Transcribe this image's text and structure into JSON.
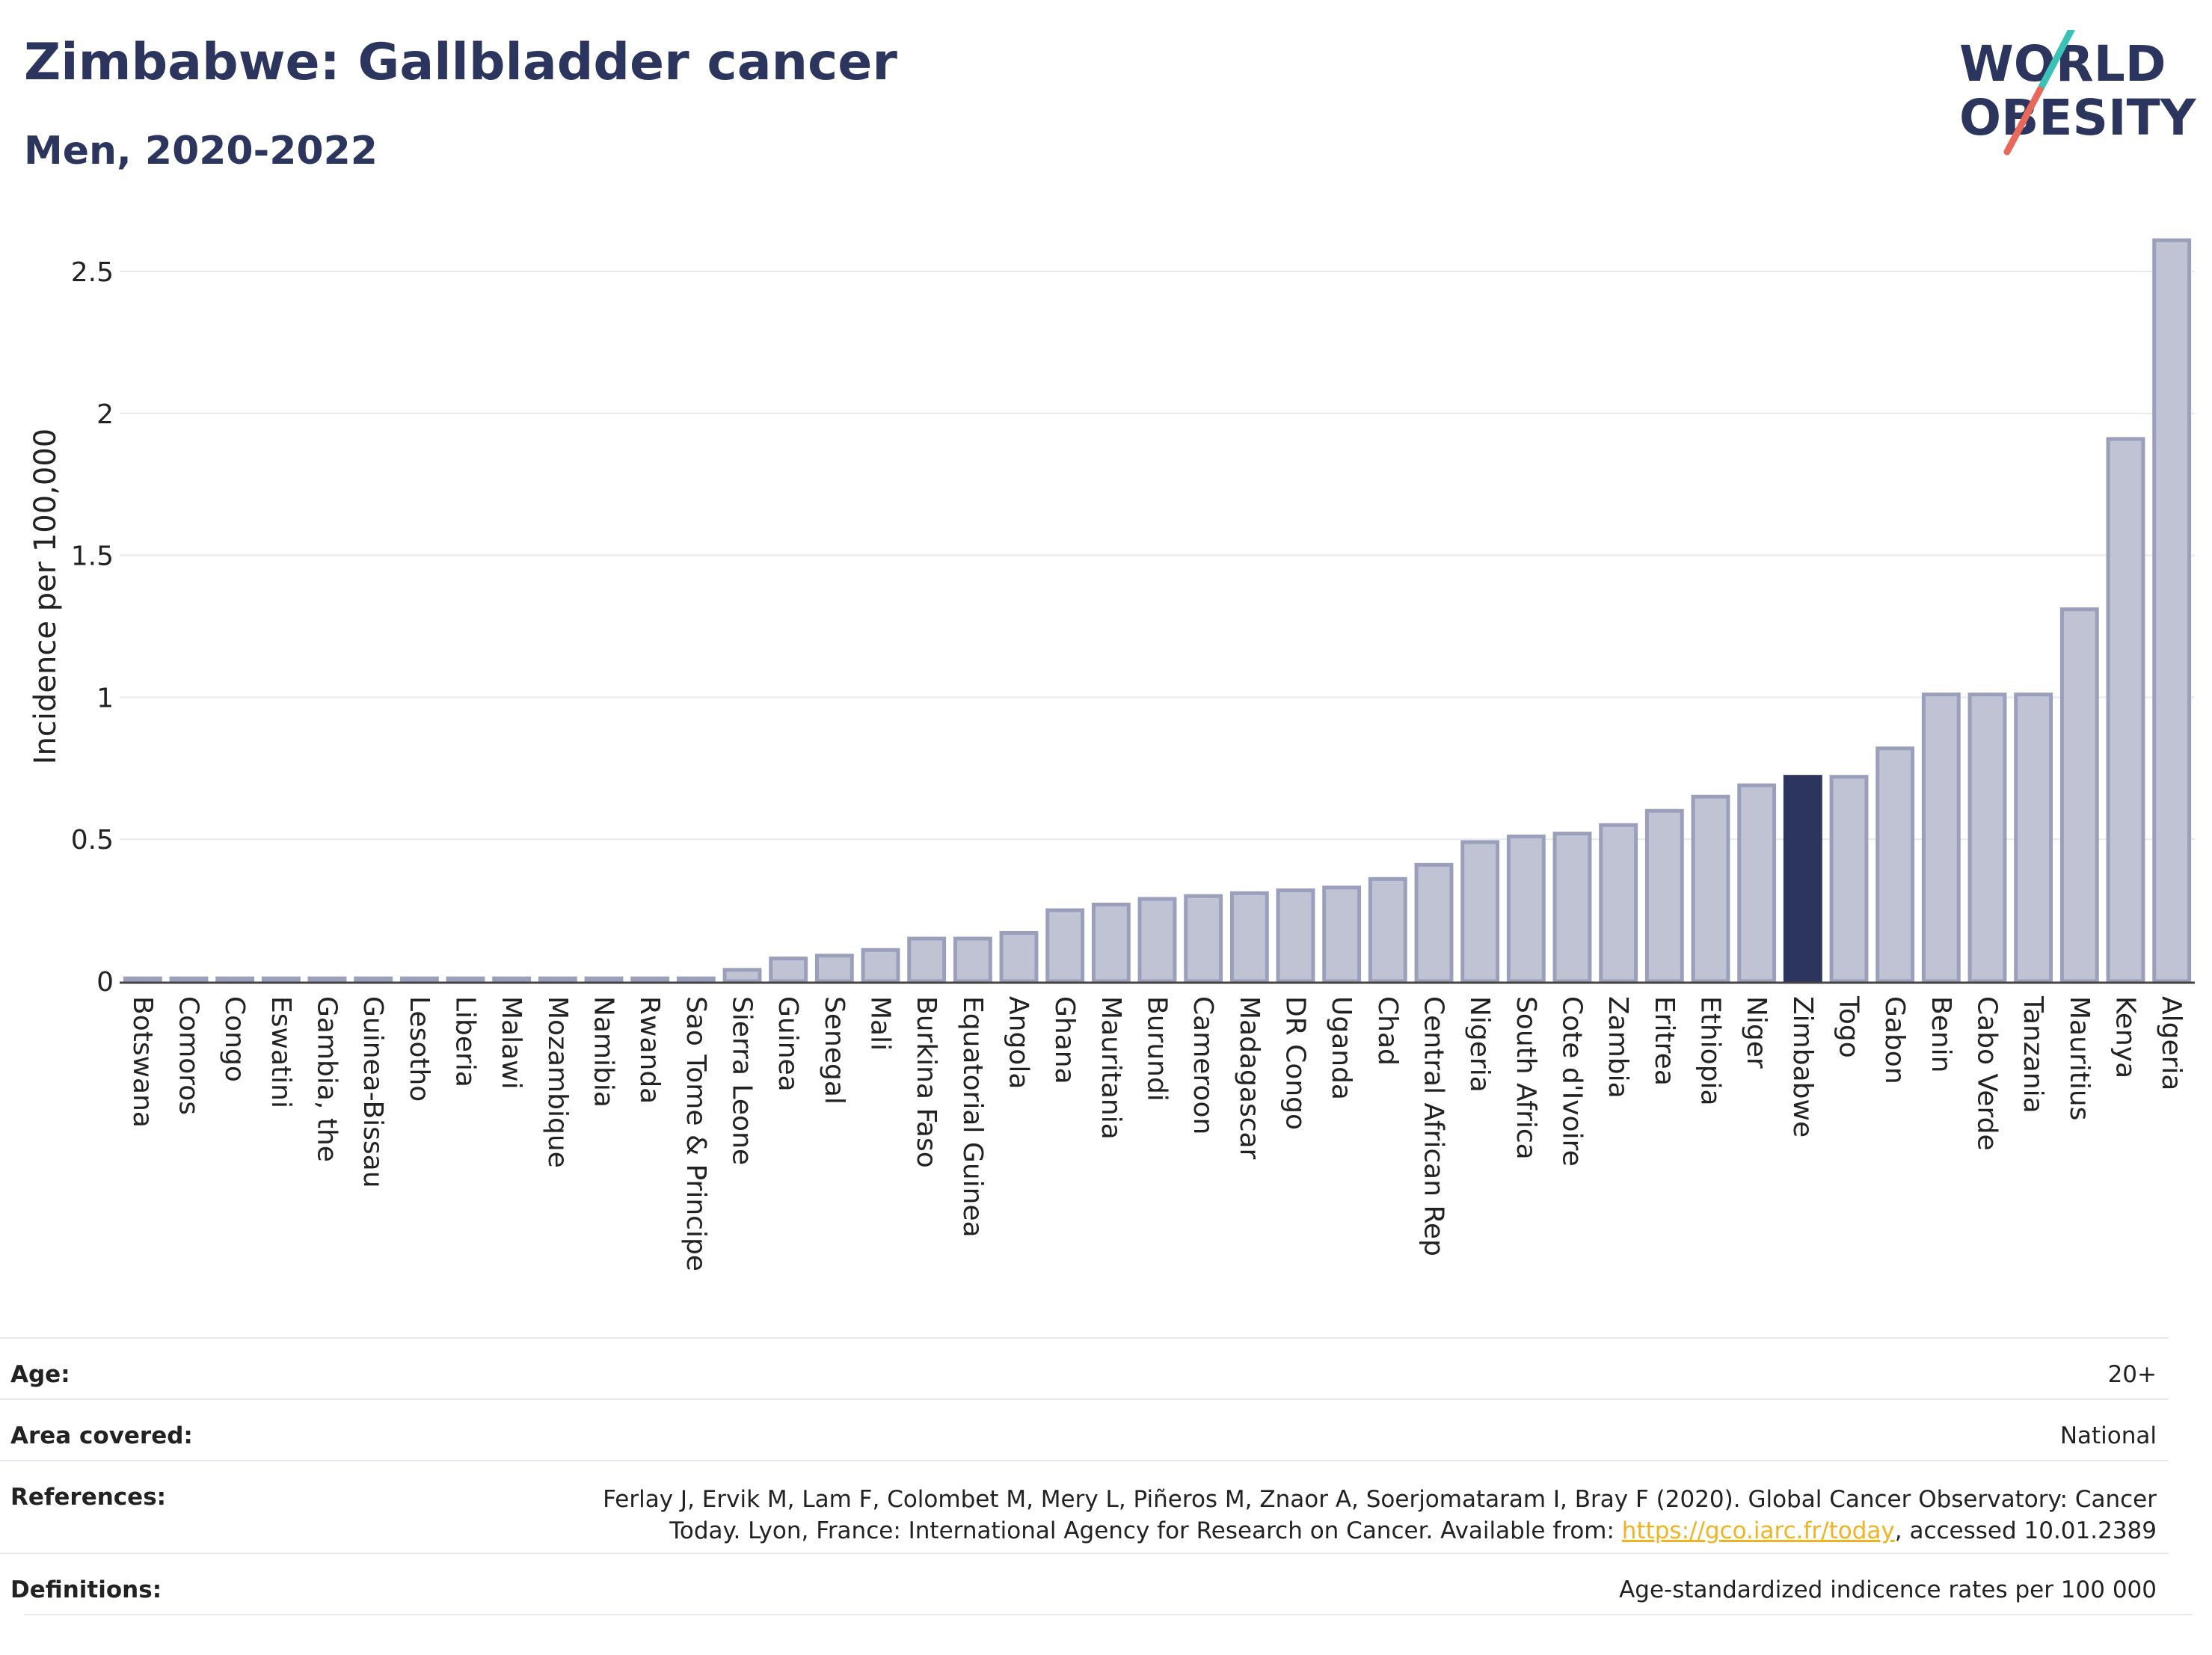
{
  "header": {
    "title": "Zimbabwe: Gallbladder cancer",
    "subtitle": "Men, 2020-2022"
  },
  "logo": {
    "line1": "WORLD",
    "line2": "OBESITY"
  },
  "colors": {
    "bar": "#bfc3d3",
    "bar_border": "#9aa0bb",
    "highlight": "#2b355e",
    "grid": "#e8e9ee",
    "axis": "#444444",
    "text": "#2b355e",
    "link": "#f0b323",
    "logo_teal": "#3cc1b8",
    "logo_red": "#e8695c"
  },
  "chart_data": {
    "type": "bar",
    "ylabel": "Incidence per 100,000",
    "ylim": [
      0,
      2.7
    ],
    "yticks": [
      0,
      0.5,
      1,
      1.5,
      2,
      2.5
    ],
    "ytick_labels": [
      "0",
      "0.5",
      "1",
      "1.5",
      "2",
      "2.5"
    ],
    "highlight": "Zimbabwe",
    "categories": [
      "Botswana",
      "Comoros",
      "Congo",
      "Eswatini",
      "Gambia, the",
      "Guinea-Bissau",
      "Lesotho",
      "Liberia",
      "Malawi",
      "Mozambique",
      "Namibia",
      "Rwanda",
      "Sao Tome & Principe",
      "Sierra Leone",
      "Guinea",
      "Senegal",
      "Mali",
      "Burkina Faso",
      "Equatorial Guinea",
      "Angola",
      "Ghana",
      "Mauritania",
      "Burundi",
      "Cameroon",
      "Madagascar",
      "DR Congo",
      "Uganda",
      "Chad",
      "Central African Rep",
      "Nigeria",
      "South Africa",
      "Cote d'Ivoire",
      "Zambia",
      "Eritrea",
      "Ethiopia",
      "Niger",
      "Zimbabwe",
      "Togo",
      "Gabon",
      "Benin",
      "Cabo Verde",
      "Tanzania",
      "Mauritius",
      "Kenya",
      "Algeria"
    ],
    "values": [
      0.01,
      0.01,
      0.01,
      0.01,
      0.01,
      0.01,
      0.01,
      0.01,
      0.01,
      0.01,
      0.01,
      0.01,
      0.01,
      0.04,
      0.08,
      0.09,
      0.11,
      0.15,
      0.15,
      0.17,
      0.25,
      0.27,
      0.29,
      0.3,
      0.31,
      0.32,
      0.33,
      0.36,
      0.41,
      0.49,
      0.51,
      0.52,
      0.55,
      0.6,
      0.65,
      0.69,
      0.72,
      0.72,
      0.82,
      1.01,
      1.01,
      1.01,
      1.31,
      1.91,
      2.61
    ]
  },
  "info": {
    "age": {
      "label": "Age:",
      "value": "20+"
    },
    "area": {
      "label": "Area covered:",
      "value": "National"
    },
    "references": {
      "label": "References:",
      "line1": "Ferlay J, Ervik M, Lam F, Colombet M, Mery L, Piñeros M, Znaor A, Soerjomataram I, Bray F (2020). Global Cancer Observatory: Cancer",
      "line2_prefix": "Today. Lyon, France: International Agency for Research on Cancer. Available from: ",
      "link": "https://gco.iarc.fr/today",
      "line2_suffix": ", accessed 10.01.2389"
    },
    "definitions": {
      "label": "Definitions:",
      "value": "Age-standardized indicence rates per 100 000"
    }
  }
}
